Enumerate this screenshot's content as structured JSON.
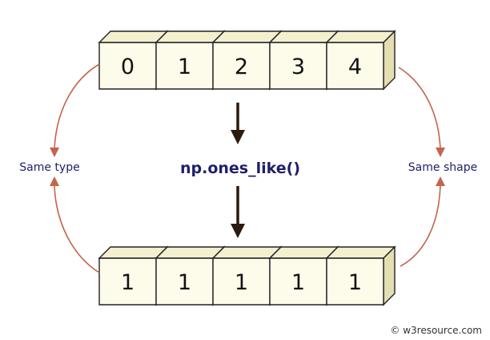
{
  "input_array": {
    "values": [
      "0",
      "1",
      "2",
      "3",
      "4"
    ]
  },
  "output_array": {
    "values": [
      "1",
      "1",
      "1",
      "1",
      "1"
    ]
  },
  "function_label": "np.ones_like()",
  "left_label": "Same type",
  "right_label": "Same shape",
  "watermark": "© w3resource.com",
  "colors": {
    "curve": "#c2654a",
    "down_arrow": "#2b1a0e",
    "label_text": "#1f1f6b",
    "cube_front": "#fdfbe9"
  }
}
